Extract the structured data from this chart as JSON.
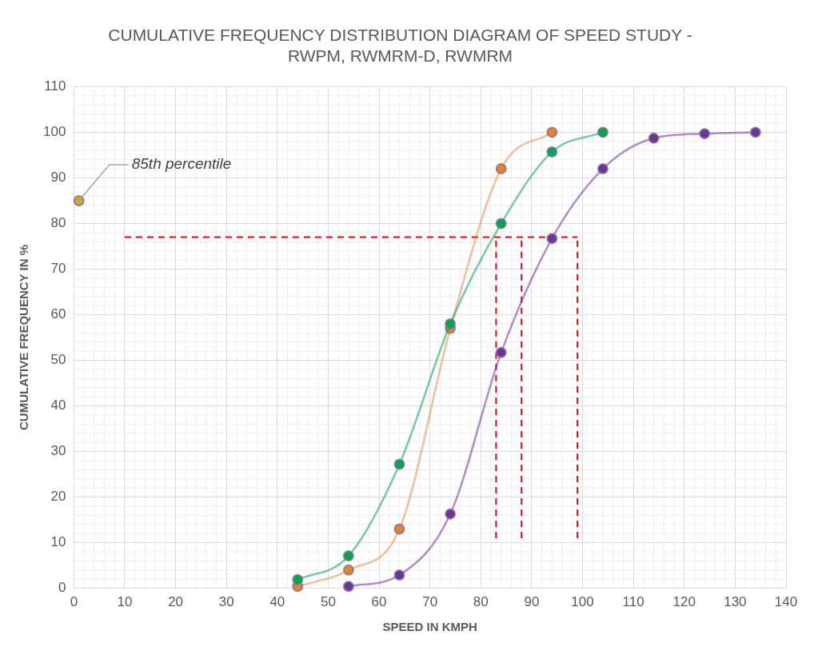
{
  "chart_data": {
    "type": "scatter",
    "title": "CUMULATIVE FREQUENCY DISTRIBUTION DIAGRAM OF SPEED STUDY - RWPM, RWMRM-D, RWMRM",
    "xlabel": "SPEED IN KMPH",
    "ylabel": "CUMULATIVE FREQUENCY IN %",
    "xlim": [
      0,
      140
    ],
    "xticks": [
      0,
      10,
      20,
      30,
      40,
      50,
      60,
      70,
      80,
      90,
      100,
      110,
      120,
      130,
      140
    ],
    "ylim": [
      0,
      110
    ],
    "yticks": [
      0,
      10,
      20,
      30,
      40,
      50,
      60,
      70,
      80,
      90,
      100,
      110
    ],
    "grid": true,
    "legend": false,
    "marker": "circle",
    "annotations": [
      {
        "text": "85th percentile",
        "x": 1,
        "y": 85
      }
    ],
    "series": [
      {
        "type": "line",
        "color": "#ff0000",
        "line_style": "dashed",
        "marker": "none",
        "x": [
          10,
          99
        ],
        "values": [
          77,
          77
        ]
      },
      {
        "type": "line",
        "color": "#ff0000",
        "line_style": "dashed",
        "marker": "none",
        "x": [
          83,
          83
        ],
        "values": [
          11,
          77
        ]
      },
      {
        "type": "line",
        "color": "#ff0000",
        "line_style": "dashed",
        "marker": "none",
        "x": [
          88,
          88
        ],
        "values": [
          11,
          77
        ]
      },
      {
        "type": "line",
        "color": "#ff0000",
        "line_style": "dashed",
        "marker": "none",
        "x": [
          99,
          99
        ],
        "values": [
          11,
          77
        ]
      },
      {
        "type": "line",
        "color": "#ed7d31",
        "x": [
          44,
          54,
          64,
          74,
          84,
          94
        ],
        "values": [
          0.4,
          4,
          13,
          57,
          92,
          100
        ]
      },
      {
        "type": "line",
        "color": "#00a651",
        "x": [
          44,
          54,
          64,
          74,
          84,
          94,
          104
        ],
        "values": [
          1.9,
          7.1,
          27.2,
          58,
          80,
          95.7,
          100
        ]
      },
      {
        "type": "line",
        "color": "#7030a0",
        "x": [
          54,
          64,
          74,
          84,
          94,
          104,
          114,
          124,
          134
        ],
        "values": [
          0.4,
          2.9,
          16.3,
          51.7,
          76.7,
          92,
          98.7,
          99.7,
          100
        ]
      },
      {
        "color": "#d4a72c",
        "x": [
          1
        ],
        "values": [
          85
        ]
      }
    ]
  }
}
